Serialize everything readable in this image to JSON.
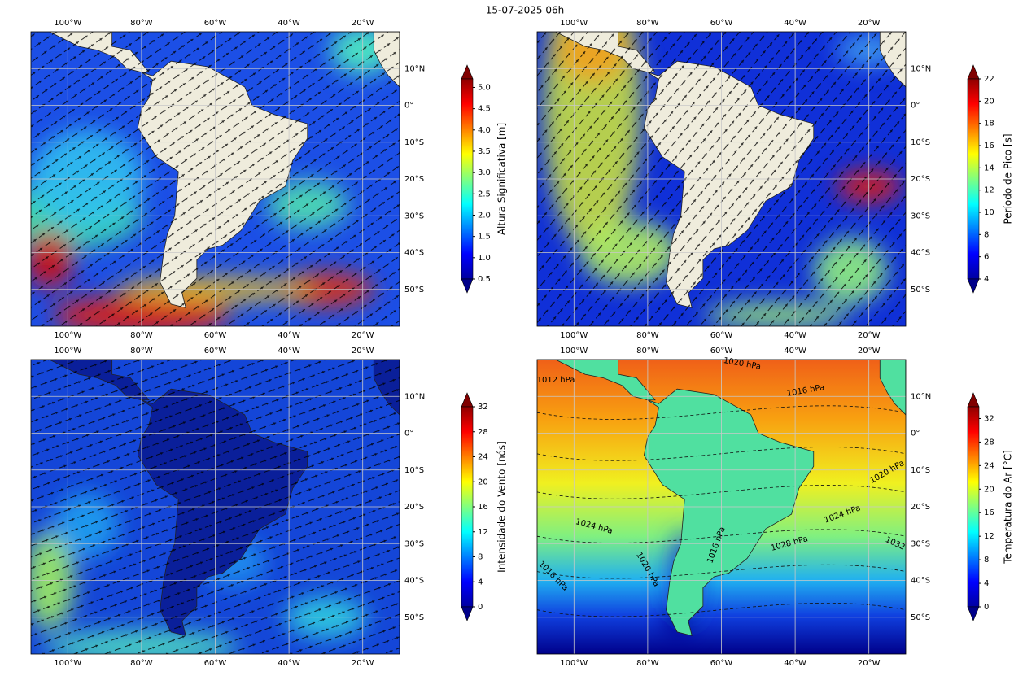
{
  "title": "15-07-2025 06h",
  "map": {
    "lon_ticks": [
      {
        "value": -100,
        "label": "100°W"
      },
      {
        "value": -80,
        "label": "80°W"
      },
      {
        "value": -60,
        "label": "60°W"
      },
      {
        "value": -40,
        "label": "40°W"
      },
      {
        "value": -20,
        "label": "20°W"
      }
    ],
    "lat_ticks": [
      {
        "value": 10,
        "label": "10°N"
      },
      {
        "value": 0,
        "label": "0°"
      },
      {
        "value": -10,
        "label": "10°S"
      },
      {
        "value": -20,
        "label": "20°S"
      },
      {
        "value": -30,
        "label": "30°S"
      },
      {
        "value": -40,
        "label": "40°S"
      },
      {
        "value": -50,
        "label": "50°S"
      }
    ]
  },
  "panels": [
    {
      "colorbar": {
        "label": "Altura Significativa [m]",
        "lim": [
          0.5,
          5.2
        ],
        "ticks": [
          0.5,
          {
            "value": 1,
            "label": "1.0"
          },
          1.5,
          {
            "value": 2,
            "label": "2.0"
          },
          2.5,
          {
            "value": 3,
            "label": "3.0"
          },
          3.5,
          {
            "value": 4,
            "label": "4.0"
          },
          4.5,
          {
            "value": 5,
            "label": "5.0"
          }
        ]
      }
    },
    {
      "colorbar": {
        "label": "Período de Pico [s]",
        "lim": [
          4,
          22
        ],
        "ticks": [
          4,
          6,
          8,
          10,
          12,
          14,
          16,
          18,
          20,
          22
        ]
      }
    },
    {
      "colorbar": {
        "label": "Intensidade do Vento [nós]",
        "lim": [
          0,
          32
        ],
        "ticks": [
          0,
          4,
          8,
          12,
          16,
          20,
          24,
          28,
          32
        ]
      }
    },
    {
      "colorbar": {
        "label": "Temperatura do Ar [°C]",
        "lim": [
          0,
          34
        ],
        "ticks": [
          0,
          4,
          8,
          12,
          16,
          20,
          24,
          28,
          32
        ]
      },
      "contour_labels": [
        "1012 hPa",
        "1020 hPa",
        "1016 hPa",
        "1020 hPa",
        "1024 hPa",
        "1024 hPa",
        "1028 hPa",
        "1032",
        "1020 hPa",
        "1016 hPa",
        "1016 hPa"
      ]
    }
  ]
}
